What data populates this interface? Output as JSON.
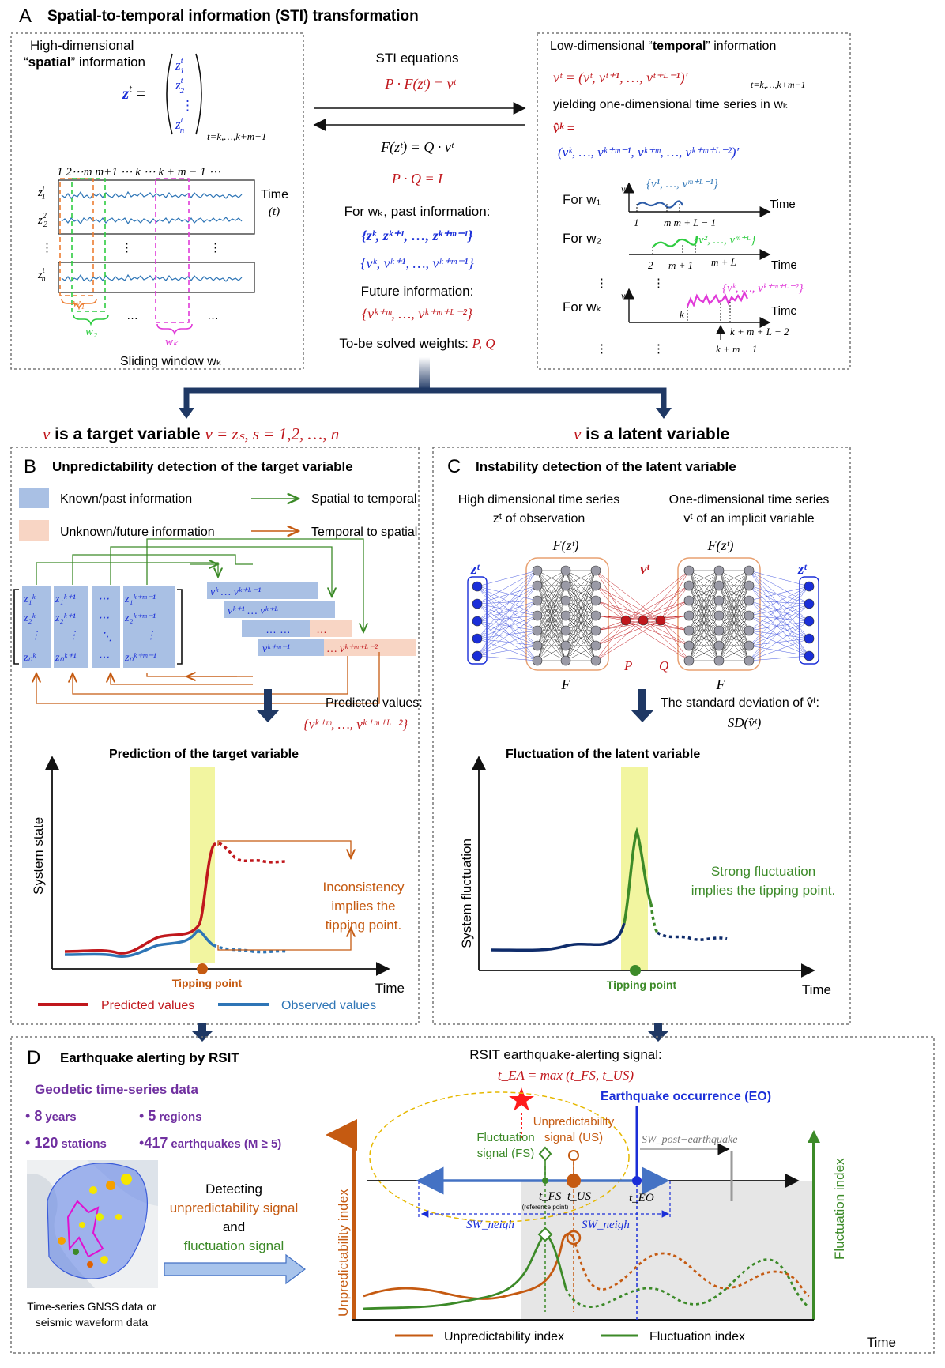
{
  "colors": {
    "red": "#c0171c",
    "blue": "#1a2ed8",
    "navy": "#1f3864",
    "green": "#3c8a28",
    "orange": "#c55a11",
    "magenta": "#e03ad8",
    "known": "#a9c0e4",
    "unknown": "#f8d5c4",
    "purple": "#7030a0",
    "yellow": "#f2f5a0"
  },
  "panel_a": {
    "letter": "A",
    "title": "Spatial-to-temporal information (STI) transformation",
    "left_title_1": "High-dimensional",
    "left_title_2_q1": "“",
    "left_title_2_b": "spatial",
    "left_title_2_rest": "” information",
    "zt_eq": "z",
    "zt_range": "t=k,…,k+m−1",
    "ts_header": "1 2⋯m m+1 ⋯  k  ⋯ k + m − 1 ⋯",
    "time_label": "Time",
    "time_sub": "(t)",
    "row_labels": [
      "z₁ᵗ",
      "z₂²",
      "⋮",
      "zₙᵗ"
    ],
    "w1": "w₁",
    "w2": "w₂",
    "wk": "wₖ",
    "dots": "…",
    "sliding": "Sliding window wₖ",
    "sti_eq_title": "STI equations",
    "eq1": "P · F(zᵗ) = vᵗ",
    "eq2": "F(zᵗ) = Q · vᵗ",
    "eq3": "P · Q = I",
    "past_title": "For wₖ, past information:",
    "past_z": "{zᵏ, zᵏ⁺¹, …, zᵏ⁺ᵐ⁻¹}",
    "past_v": "{vᵏ, vᵏ⁺¹, …, vᵏ⁺ᵐ⁻¹}",
    "future_title": "Future information:",
    "future_v": "{vᵏ⁺ᵐ, …, vᵏ⁺ᵐ⁺ᴸ⁻²}",
    "weights": "To-be solved weights: ",
    "weights_pq": "P, Q",
    "right_title_pre": "Low-dimensional “",
    "right_title_b": "temporal",
    "right_title_post": "” information",
    "vt_def": "vᵗ = (vᵗ, vᵗ⁺¹, …, vᵗ⁺ᴸ⁻¹)′",
    "vt_range": "t=k,…,k+m−1",
    "yielding": "yielding one-dimensional time series in wₖ",
    "vhat_def": "v̂ᵏ =",
    "vhat_seq": "(vᵏ, …, vᵏ⁺ᵐ⁻¹, vᵏ⁺ᵐ, …, vᵏ⁺ᵐ⁺ᴸ⁻²)′",
    "for_w1": "For w₁",
    "for_w2": "For w₂",
    "for_wk": "For wₖ",
    "set1": "{v¹, …, vᵐ⁺ᴸ⁻¹}",
    "set2": "{v², …, vᵐ⁺ᴸ}",
    "setk": "{vᵏ, …, vᵏ⁺ᵐ⁺ᴸ⁻²}",
    "w1_ticks": [
      "1",
      "m  m + L − 1"
    ],
    "w2_ticks": [
      "2",
      "m + 1",
      "m + L"
    ],
    "wk_ticks": [
      "k",
      "k + m + L − 2",
      "k + m − 1"
    ],
    "v": "v",
    "vdots": "⋮"
  },
  "targets": {
    "target_v": "v",
    "target_text": " is a target variable ",
    "target_eq": "v = zₛ, s = 1,2, …, n",
    "latent_v": "v",
    "latent_text": " is a latent variable"
  },
  "panel_b": {
    "letter": "B",
    "title": "Unpredictability detection of the target variable",
    "legend_known": "Known/past information",
    "legend_unknown": "Unknown/future information",
    "legend_s2t": "Spatial to temporal",
    "legend_t2s": "Temporal to spatial",
    "matrix_cols": [
      [
        "z₁ᵏ",
        "z₂ᵏ",
        "⋮",
        "zₙᵏ"
      ],
      [
        "z₁ᵏ⁺¹",
        "z₂ᵏ⁺¹",
        "⋮",
        "zₙᵏ⁺¹"
      ],
      [
        "⋯",
        "⋯",
        "⋱",
        "⋯"
      ],
      [
        "z₁ᵏ⁺ᵐ⁻¹",
        "z₂ᵏ⁺ᵐ⁻¹",
        "⋮",
        "zₙᵏ⁺ᵐ⁻¹"
      ]
    ],
    "hankel_rows": [
      "vᵏ   …   vᵏ⁺ᴸ⁻¹",
      "vᵏ⁺¹   …   vᵏ⁺ᴸ",
      "…   …",
      "vᵏ⁺ᵐ⁻¹"
    ],
    "hankel_unknown": [
      "…",
      "… vᵏ⁺ᵐ⁺ᴸ⁻²"
    ],
    "predicted_title": "Predicted values:",
    "predicted_set": "{vᵏ⁺ᵐ, …, vᵏ⁺ᵐ⁺ᴸ⁻²}",
    "chart_title": "Prediction of the target variable",
    "ylabel": "System state",
    "xlabel": "Time",
    "tipping": "Tipping point",
    "annotation": [
      "Inconsistency",
      "implies the",
      "tipping point."
    ],
    "legend_pred": "Predicted values",
    "legend_obs": "Observed values"
  },
  "panel_c": {
    "letter": "C",
    "title": "Instability detection of the latent variable",
    "left_head_1": "High dimensional time series",
    "left_head_2": "zᵗ of observation",
    "right_head_1": "One-dimensional time series",
    "right_head_2": "vᵗ of an implicit variable",
    "fz": "F(zᵗ)",
    "F": "F",
    "P": "P",
    "Q": "Q",
    "zt": "zᵗ",
    "vt": "vᵗ",
    "sd_text": "The standard deviation of v̂ᵗ:",
    "sd_eq": "SD(v̂ᵗ)",
    "chart_title": "Fluctuation of the latent variable",
    "ylabel": "System fluctuation",
    "xlabel": "Time",
    "tipping": "Tipping point",
    "annotation": [
      "Strong fluctuation",
      "implies the tipping point."
    ]
  },
  "panel_d": {
    "letter": "D",
    "title": "Earthquake alerting by RSIT",
    "geo_title": "Geodetic time-series data",
    "stats": [
      {
        "num": "8",
        "unit": "years"
      },
      {
        "num": "5",
        "unit": "regions"
      },
      {
        "num": "120",
        "unit": "stations"
      },
      {
        "num": "417",
        "unit": "earthquakes (M ≥ 5)"
      }
    ],
    "map_caption_1": "Time-series GNSS data or",
    "map_caption_2": "seismic waveform data",
    "detect": [
      "Detecting",
      "unpredictability signal",
      "and",
      "fluctuation signal"
    ],
    "signal_title": "RSIT earthquake-alerting signal:",
    "signal_eq": "t_EA = max (t_FS, t_US)",
    "eo_label": "Earthquake occurrence (EO)",
    "fs_label": [
      "Fluctuation",
      "signal (FS)"
    ],
    "us_label": [
      "Unpredictability",
      "signal (US)"
    ],
    "sw_post": "SW_post−earthquake",
    "t_fs": "t_FS",
    "ref_point": "(reference point)",
    "t_us": "t_US",
    "t_eo": "t_EO",
    "sw_neigh": "SW_neigh",
    "ylabel_left": "Unpredictability index",
    "ylabel_right": "Fluctuation index",
    "xlabel": "Time",
    "legend_unpred": "Unpredictability index",
    "legend_fluct": "Fluctuation index"
  }
}
